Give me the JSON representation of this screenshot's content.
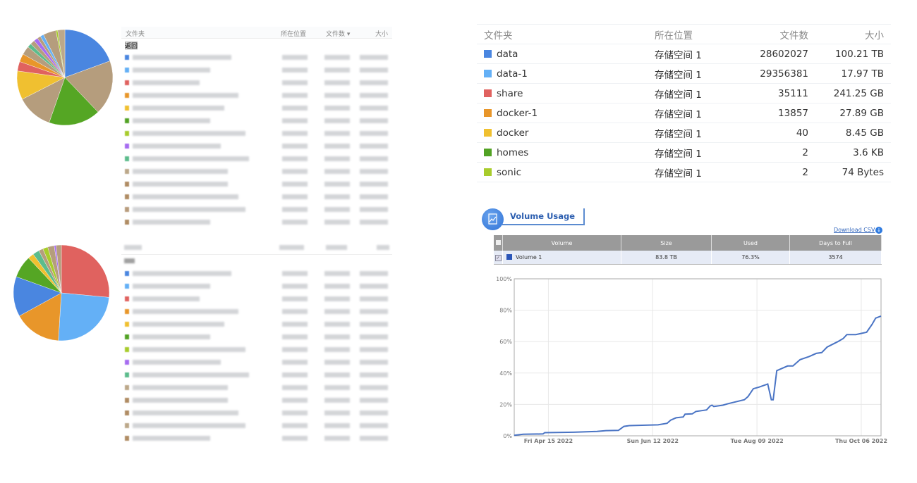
{
  "top_left": {
    "headers": {
      "folder": "文件夹",
      "location": "所在位置",
      "files": "文件数 ▾",
      "size": "大小"
    },
    "back_label": "返回",
    "row_colors": [
      "#4a86e0",
      "#64b0f6",
      "#e0625f",
      "#e8962a",
      "#f0c030",
      "#52a224",
      "#a8cc2c",
      "#a66cf0",
      "#5cbc8c",
      "#bca88a",
      "#b08c64",
      "#b08c64",
      "#b89c7c",
      "#b08c64"
    ],
    "pie": {
      "slices": [
        {
          "value": 20,
          "color": "#4a86e0"
        },
        {
          "value": 19,
          "color": "#b59d7d"
        },
        {
          "value": 18,
          "color": "#55a624"
        },
        {
          "value": 12.5,
          "color": "#b59d7d"
        },
        {
          "value": 10,
          "color": "#f0c030"
        },
        {
          "value": 3.3,
          "color": "#e0625f"
        },
        {
          "value": 2.8,
          "color": "#e8962a"
        },
        {
          "value": 3,
          "color": "#b59d7d"
        },
        {
          "value": 1.4,
          "color": "#5cbc8c"
        },
        {
          "value": 1.6,
          "color": "#b59d7d"
        },
        {
          "value": 1.4,
          "color": "#a66cf0"
        },
        {
          "value": 1.2,
          "color": "#b59d7d"
        },
        {
          "value": 1.2,
          "color": "#64b0f6"
        },
        {
          "value": 4.5,
          "color": "#b59d7d"
        },
        {
          "value": 0.6,
          "color": "#a8cc2c"
        },
        {
          "value": 2.5,
          "color": "#bca88a"
        }
      ]
    }
  },
  "bottom_left": {
    "row_colors": [
      "#4a86e0",
      "#64b0f6",
      "#e0625f",
      "#e8962a",
      "#f0c030",
      "#52a224",
      "#a8cc2c",
      "#a66cf0",
      "#5cbc8c",
      "#bca88a",
      "#b08c64",
      "#b08c64",
      "#bca88a",
      "#b08c64"
    ],
    "pie": {
      "slices": [
        {
          "value": 26.5,
          "color": "#e0625f"
        },
        {
          "value": 24.5,
          "color": "#64b0f6"
        },
        {
          "value": 16,
          "color": "#e8962a"
        },
        {
          "value": 13.5,
          "color": "#4a86e0"
        },
        {
          "value": 7.5,
          "color": "#55a624"
        },
        {
          "value": 2,
          "color": "#f0c030"
        },
        {
          "value": 2.2,
          "color": "#5cbc8c"
        },
        {
          "value": 1.5,
          "color": "#b59d7d"
        },
        {
          "value": 1.7,
          "color": "#a8cc2c"
        },
        {
          "value": 2.2,
          "color": "#b59d7d"
        },
        {
          "value": 0.6,
          "color": "#a66cf0"
        },
        {
          "value": 1.8,
          "color": "#b59d7d"
        }
      ]
    }
  },
  "folder_table": {
    "headers": {
      "folder": "文件夹",
      "location": "所在位置",
      "files": "文件数",
      "size": "大小"
    },
    "rows": [
      {
        "name": "data",
        "color": "#4a86e0",
        "location": "存储空间 1",
        "files": "28602027",
        "size": "100.21 TB"
      },
      {
        "name": "data-1",
        "color": "#64b0f6",
        "location": "存储空间 1",
        "files": "29356381",
        "size": "17.97 TB"
      },
      {
        "name": "share",
        "color": "#e0625f",
        "location": "存储空间 1",
        "files": "35111",
        "size": "241.25 GB"
      },
      {
        "name": "docker-1",
        "color": "#e8962a",
        "location": "存储空间 1",
        "files": "13857",
        "size": "27.89 GB"
      },
      {
        "name": "docker",
        "color": "#f0c030",
        "location": "存储空间 1",
        "files": "40",
        "size": "8.45 GB"
      },
      {
        "name": "homes",
        "color": "#52a224",
        "location": "存储空间 1",
        "files": "2",
        "size": "3.6 KB"
      },
      {
        "name": "sonic",
        "color": "#a8cc2c",
        "location": "存储空间 1",
        "files": "2",
        "size": "74 Bytes"
      }
    ]
  },
  "volume_usage": {
    "title": "Volume Usage",
    "download_label": "Download CSV",
    "headers": {
      "volume": "Volume",
      "size": "Size",
      "used": "Used",
      "days": "Days to Full"
    },
    "row": {
      "volume": "Volume 1",
      "size": "83.8 TB",
      "used": "76.3%",
      "days": "3574",
      "color": "#2a55b8",
      "checked": true
    }
  },
  "chart_data": {
    "type": "line",
    "xlim": [
      "2022-03-27",
      "2022-10-17"
    ],
    "ylim": [
      0,
      100
    ],
    "yticks": [
      "0%",
      "20%",
      "40%",
      "60%",
      "80%",
      "100%"
    ],
    "xticks": [
      {
        "date": "2022-04-15",
        "label": "Fri Apr 15 2022"
      },
      {
        "date": "2022-06-12",
        "label": "Sun Jun 12 2022"
      },
      {
        "date": "2022-08-09",
        "label": "Tue Aug 09 2022"
      },
      {
        "date": "2022-10-06",
        "label": "Thu Oct 06 2022"
      }
    ],
    "grid": true,
    "color": "#4a74c4",
    "series": [
      {
        "x": [
          "2022-03-27",
          "2022-04-01",
          "2022-04-12",
          "2022-04-13",
          "2022-04-29",
          "2022-05-12",
          "2022-05-17",
          "2022-05-24",
          "2022-05-27",
          "2022-05-30",
          "2022-06-15",
          "2022-06-20",
          "2022-06-22",
          "2022-06-25",
          "2022-06-29",
          "2022-06-30",
          "2022-07-04",
          "2022-07-06",
          "2022-07-12",
          "2022-07-14",
          "2022-07-15",
          "2022-07-16",
          "2022-07-21",
          "2022-07-24",
          "2022-08-02",
          "2022-08-04",
          "2022-08-07",
          "2022-08-10",
          "2022-08-15",
          "2022-08-17",
          "2022-08-18",
          "2022-08-20",
          "2022-08-26",
          "2022-08-29",
          "2022-09-02",
          "2022-09-07",
          "2022-09-11",
          "2022-09-14",
          "2022-09-17",
          "2022-09-23",
          "2022-09-26",
          "2022-09-28",
          "2022-10-03",
          "2022-10-09",
          "2022-10-12",
          "2022-10-14",
          "2022-10-17"
        ],
        "y": [
          0.3,
          1.0,
          1.2,
          2.0,
          2.3,
          2.8,
          3.3,
          3.5,
          6.0,
          6.5,
          7.0,
          8.0,
          10.0,
          11.5,
          12.0,
          13.8,
          14.0,
          15.5,
          16.5,
          19.0,
          19.5,
          18.7,
          19.5,
          20.5,
          23.0,
          25.0,
          30.0,
          31.0,
          33.0,
          23.0,
          23.0,
          41.5,
          44.5,
          44.5,
          48.5,
          50.5,
          52.5,
          53.0,
          56.5,
          60.0,
          62.0,
          64.5,
          64.5,
          66.0,
          71.0,
          75.0,
          76.3
        ]
      }
    ]
  }
}
